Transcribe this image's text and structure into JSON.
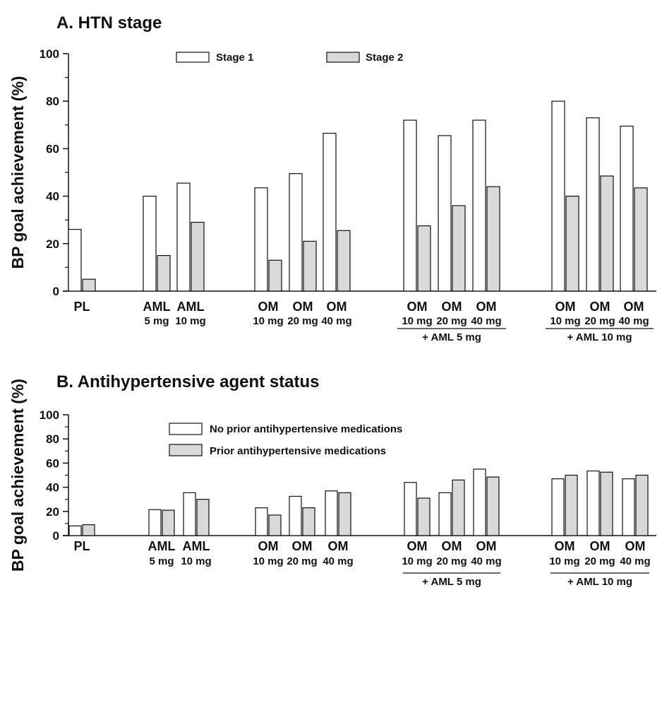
{
  "chart_data": [
    {
      "type": "bar",
      "title": "A. HTN stage",
      "ylabel": "BP goal achievement (%)",
      "ylim": [
        0,
        100
      ],
      "yticks": [
        0,
        20,
        40,
        60,
        80,
        100
      ],
      "legend_placement": "top",
      "categories": [
        {
          "line1": "PL",
          "line2": ""
        },
        {
          "line1": "AML",
          "line2": "5 mg"
        },
        {
          "line1": "AML",
          "line2": "10 mg"
        },
        {
          "line1": "OM",
          "line2": "10 mg"
        },
        {
          "line1": "OM",
          "line2": "20 mg"
        },
        {
          "line1": "OM",
          "line2": "40 mg"
        },
        {
          "line1": "OM",
          "line2": "10 mg"
        },
        {
          "line1": "OM",
          "line2": "20 mg"
        },
        {
          "line1": "OM",
          "line2": "40 mg"
        },
        {
          "line1": "OM",
          "line2": "10 mg"
        },
        {
          "line1": "OM",
          "line2": "20 mg"
        },
        {
          "line1": "OM",
          "line2": "40 mg"
        }
      ],
      "groups": [
        {
          "label": "+ AML 5 mg",
          "from": 6,
          "to": 8
        },
        {
          "label": "+ AML 10 mg",
          "from": 9,
          "to": 11
        }
      ],
      "series": [
        {
          "name": "Stage 1",
          "color": "#ffffff",
          "values": [
            26,
            40,
            45.5,
            43.5,
            49.5,
            66.5,
            72,
            65.5,
            72,
            80,
            73,
            69.5
          ]
        },
        {
          "name": "Stage 2",
          "color": "#d9d9d9",
          "values": [
            5,
            15,
            29,
            13,
            21,
            25.5,
            27.5,
            36,
            44,
            40,
            48.5,
            43.5
          ]
        }
      ]
    },
    {
      "type": "bar",
      "title": "B. Antihypertensive agent status",
      "ylabel": "BP goal achievement (%)",
      "ylim": [
        0,
        100
      ],
      "yticks": [
        0,
        20,
        40,
        60,
        80,
        100
      ],
      "legend_placement": "top",
      "categories": [
        {
          "line1": "PL",
          "line2": ""
        },
        {
          "line1": "AML",
          "line2": "5 mg"
        },
        {
          "line1": "AML",
          "line2": "10 mg"
        },
        {
          "line1": "OM",
          "line2": "10 mg"
        },
        {
          "line1": "OM",
          "line2": "20 mg"
        },
        {
          "line1": "OM",
          "line2": "40 mg"
        },
        {
          "line1": "OM",
          "line2": "10 mg"
        },
        {
          "line1": "OM",
          "line2": "20 mg"
        },
        {
          "line1": "OM",
          "line2": "40 mg"
        },
        {
          "line1": "OM",
          "line2": "10 mg"
        },
        {
          "line1": "OM",
          "line2": "20 mg"
        },
        {
          "line1": "OM",
          "line2": "40 mg"
        }
      ],
      "groups": [
        {
          "label": "+ AML 5 mg",
          "from": 6,
          "to": 8
        },
        {
          "label": "+ AML 10 mg",
          "from": 9,
          "to": 11
        }
      ],
      "series": [
        {
          "name": "No prior antihypertensive medications",
          "color": "#ffffff",
          "values": [
            8,
            21.5,
            35.5,
            23,
            32.5,
            37,
            44,
            35.5,
            55,
            47,
            53.5,
            47
          ]
        },
        {
          "name": "Prior antihypertensive medications",
          "color": "#d9d9d9",
          "values": [
            9,
            21,
            30,
            17,
            23,
            35.5,
            31,
            46,
            48.5,
            50,
            52.5,
            50
          ]
        }
      ]
    }
  ]
}
